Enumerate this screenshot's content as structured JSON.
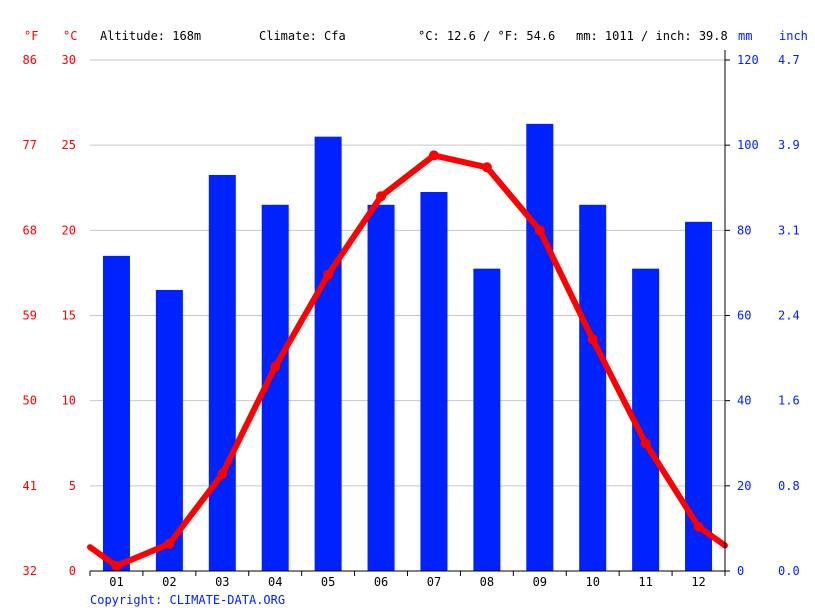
{
  "header": {
    "unit_f": "°F",
    "unit_c": "°C",
    "altitude": "Altitude: 168m",
    "climate": "Climate: Cfa",
    "temp_avg": "°C: 12.6 / °F: 54.6",
    "precip_avg": "mm: 1011 / inch: 39.8",
    "unit_mm": "mm",
    "unit_inch": "inch"
  },
  "footer": {
    "copyright": "Copyright: CLIMATE-DATA.ORG"
  },
  "colors": {
    "temperature": "#ff0000",
    "precipitation": "#0022ff",
    "grid": "#c8c8c8",
    "axis": "#000000",
    "text": "#000000"
  },
  "chart_data": {
    "type": "bar",
    "categories": [
      "01",
      "02",
      "03",
      "04",
      "05",
      "06",
      "07",
      "08",
      "09",
      "10",
      "11",
      "12"
    ],
    "grid": true,
    "axes": {
      "left_outer": {
        "unit": "°F",
        "ticks": [
          "32",
          "41",
          "50",
          "59",
          "68",
          "77",
          "86"
        ]
      },
      "left_inner": {
        "unit": "°C",
        "ticks": [
          "0",
          "5",
          "10",
          "15",
          "20",
          "25",
          "30"
        ],
        "ylim": [
          0,
          30
        ]
      },
      "right_inner": {
        "unit": "mm",
        "ticks": [
          "0",
          "20",
          "40",
          "60",
          "80",
          "100",
          "120"
        ],
        "ylim": [
          0,
          120
        ]
      },
      "right_outer": {
        "unit": "inch",
        "ticks": [
          "0.0",
          "0.8",
          "1.6",
          "2.4",
          "3.1",
          "3.9",
          "4.7"
        ]
      }
    },
    "series": [
      {
        "type": "bar",
        "axis": "mm",
        "values": [
          74,
          66,
          93,
          86,
          102,
          86,
          89,
          71,
          105,
          86,
          71,
          82
        ]
      },
      {
        "type": "line",
        "axis": "°C",
        "values": [
          0.3,
          1.6,
          5.7,
          12.0,
          17.4,
          22.0,
          24.4,
          23.7,
          20.0,
          13.6,
          7.5,
          2.6
        ],
        "start_value": 1.4,
        "end_value": 1.5
      }
    ]
  }
}
